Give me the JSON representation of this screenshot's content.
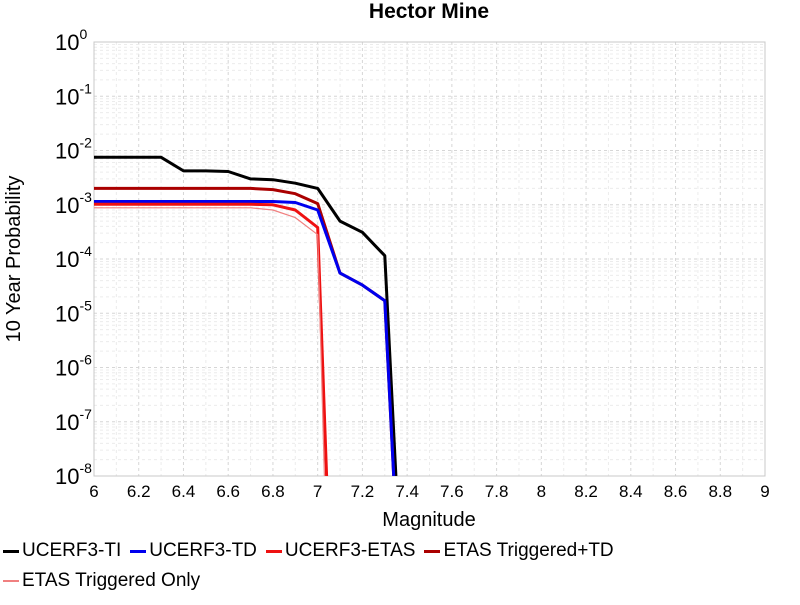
{
  "chart_data": {
    "type": "line",
    "title": "Hector Mine",
    "xlabel": "Magnitude",
    "ylabel": "10 Year Probability",
    "xlim": [
      6,
      9
    ],
    "ylim": [
      1e-08,
      1
    ],
    "yscale": "log",
    "grid": true,
    "legend_position": "bottom",
    "x_ticks": [
      "6",
      "6.2",
      "6.4",
      "6.6",
      "6.8",
      "7",
      "7.2",
      "7.4",
      "7.6",
      "7.8",
      "8",
      "8.2",
      "8.4",
      "8.6",
      "8.8",
      "9"
    ],
    "y_ticks": [
      {
        "base": "10",
        "exp": "-8"
      },
      {
        "base": "10",
        "exp": "-7"
      },
      {
        "base": "10",
        "exp": "-6"
      },
      {
        "base": "10",
        "exp": "-5"
      },
      {
        "base": "10",
        "exp": "-4"
      },
      {
        "base": "10",
        "exp": "-3"
      },
      {
        "base": "10",
        "exp": "-2"
      },
      {
        "base": "10",
        "exp": "-1"
      },
      {
        "base": "10",
        "exp": "0"
      }
    ],
    "series": [
      {
        "name": "UCERF3-TI",
        "color": "#000000",
        "width": 3,
        "points": [
          [
            6.0,
            0.0075
          ],
          [
            6.1,
            0.0075
          ],
          [
            6.2,
            0.0075
          ],
          [
            6.3,
            0.0075
          ],
          [
            6.4,
            0.0042
          ],
          [
            6.5,
            0.0042
          ],
          [
            6.6,
            0.0041
          ],
          [
            6.7,
            0.003
          ],
          [
            6.8,
            0.0029
          ],
          [
            6.9,
            0.0025
          ],
          [
            7.0,
            0.002
          ],
          [
            7.1,
            0.0005
          ],
          [
            7.2,
            0.00031
          ],
          [
            7.3,
            0.000115
          ],
          [
            7.35,
            1e-08
          ]
        ]
      },
      {
        "name": "UCERF3-TD",
        "color": "#0000ee",
        "width": 3,
        "points": [
          [
            6.0,
            0.00115
          ],
          [
            6.1,
            0.00115
          ],
          [
            6.2,
            0.00115
          ],
          [
            6.3,
            0.00115
          ],
          [
            6.4,
            0.00115
          ],
          [
            6.5,
            0.00115
          ],
          [
            6.6,
            0.00115
          ],
          [
            6.7,
            0.00115
          ],
          [
            6.8,
            0.00115
          ],
          [
            6.9,
            0.0011
          ],
          [
            7.0,
            0.0008
          ],
          [
            7.1,
            5.5e-05
          ],
          [
            7.2,
            3.3e-05
          ],
          [
            7.3,
            1.7e-05
          ],
          [
            7.34,
            1e-08
          ]
        ]
      },
      {
        "name": "UCERF3-ETAS",
        "color": "#ee1111",
        "width": 3,
        "points": [
          [
            6.0,
            0.00102
          ],
          [
            6.1,
            0.00102
          ],
          [
            6.2,
            0.00102
          ],
          [
            6.3,
            0.00102
          ],
          [
            6.4,
            0.00102
          ],
          [
            6.5,
            0.00102
          ],
          [
            6.6,
            0.00102
          ],
          [
            6.7,
            0.00102
          ],
          [
            6.8,
            0.001
          ],
          [
            6.9,
            0.0008
          ],
          [
            7.0,
            0.00038
          ],
          [
            7.04,
            1e-08
          ]
        ]
      },
      {
        "name": "ETAS Triggered+TD",
        "color": "#aa0000",
        "width": 3,
        "points": [
          [
            6.0,
            0.002
          ],
          [
            6.1,
            0.002
          ],
          [
            6.2,
            0.002
          ],
          [
            6.3,
            0.002
          ],
          [
            6.4,
            0.002
          ],
          [
            6.5,
            0.002
          ],
          [
            6.6,
            0.002
          ],
          [
            6.7,
            0.002
          ],
          [
            6.8,
            0.0019
          ],
          [
            6.9,
            0.0016
          ],
          [
            7.0,
            0.00105
          ],
          [
            7.1,
            5.5e-05
          ],
          [
            7.2,
            3.3e-05
          ],
          [
            7.3,
            1.7e-05
          ],
          [
            7.34,
            1e-08
          ]
        ]
      },
      {
        "name": "ETAS Triggered Only",
        "color": "#f08080",
        "width": 1.2,
        "points": [
          [
            6.0,
            0.00088
          ],
          [
            6.1,
            0.00088
          ],
          [
            6.2,
            0.00088
          ],
          [
            6.3,
            0.00088
          ],
          [
            6.4,
            0.00088
          ],
          [
            6.5,
            0.00088
          ],
          [
            6.6,
            0.00088
          ],
          [
            6.7,
            0.00088
          ],
          [
            6.8,
            0.0008
          ],
          [
            6.9,
            0.00058
          ],
          [
            7.0,
            0.00028
          ],
          [
            7.03,
            1e-08
          ]
        ]
      }
    ]
  }
}
